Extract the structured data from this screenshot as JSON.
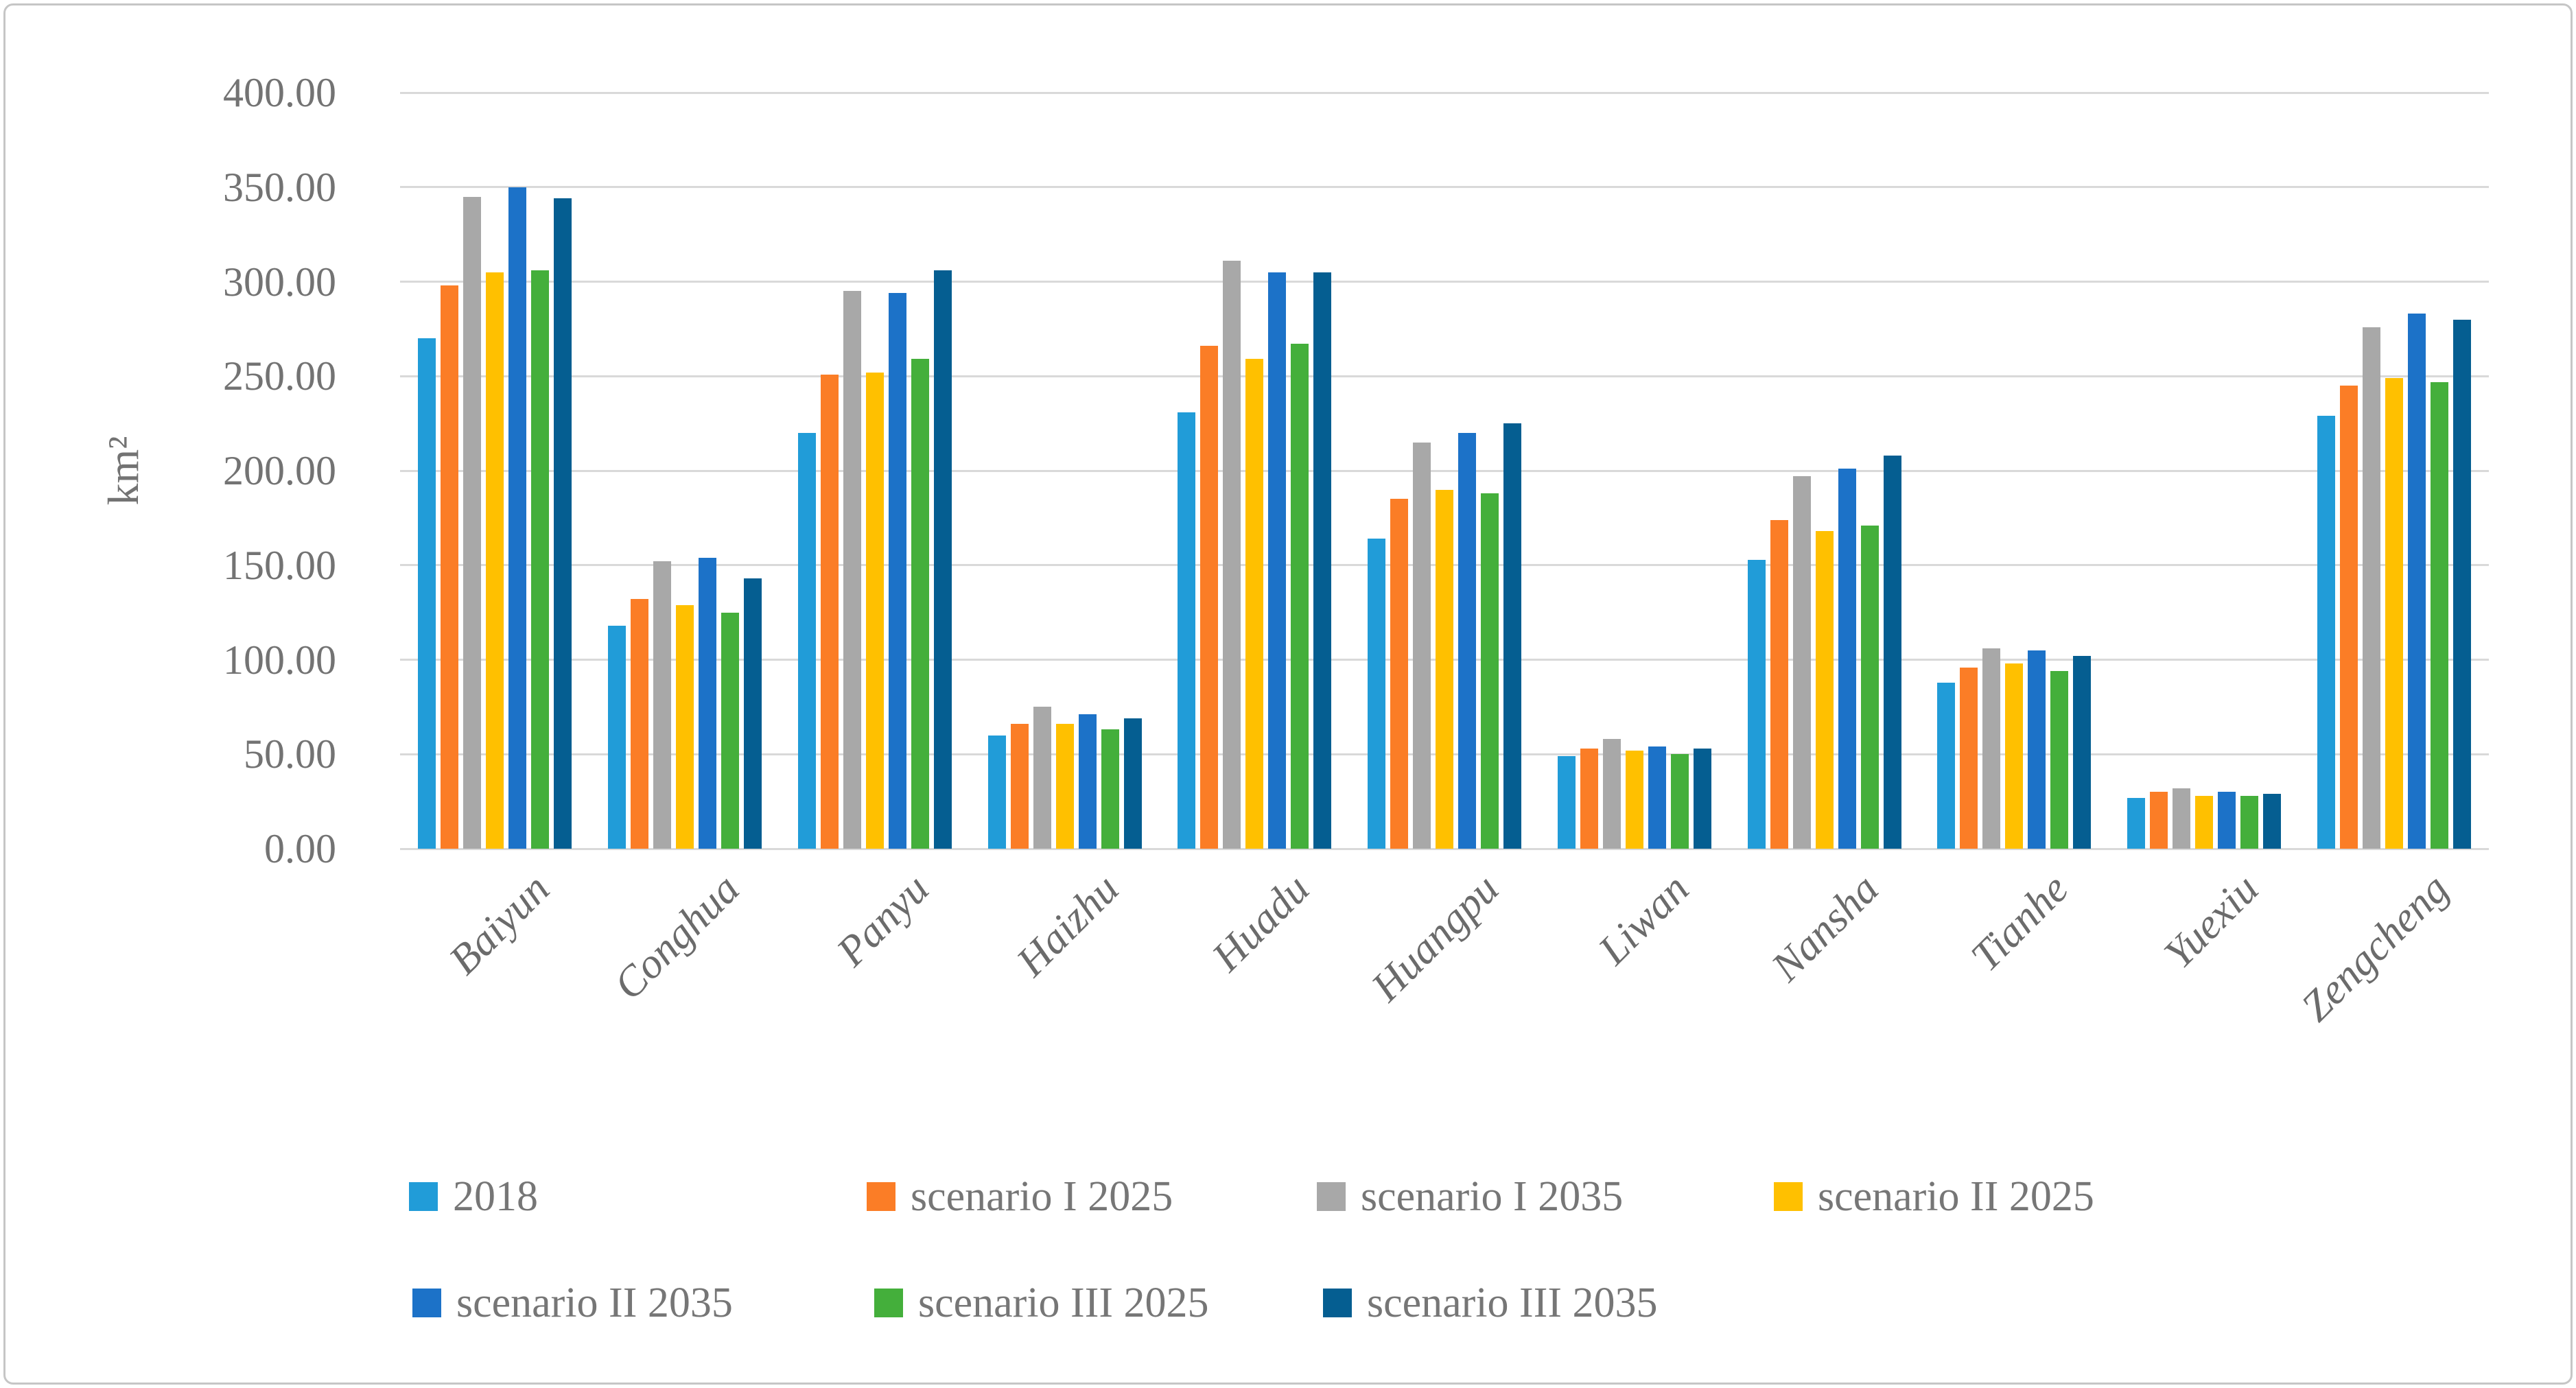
{
  "chart_data": {
    "type": "bar",
    "title": "",
    "ylabel": "km²",
    "xlabel": "",
    "ylim": [
      0,
      400
    ],
    "ytick_step": 50,
    "yticks": [
      "0.00",
      "50.00",
      "100.00",
      "150.00",
      "200.00",
      "250.00",
      "300.00",
      "350.00",
      "400.00"
    ],
    "grid": "horizontal",
    "categories": [
      "Baiyun",
      "Conghua",
      "Panyu",
      "Haizhu",
      "Huadu",
      "Huangpu",
      "Liwan",
      "Nansha",
      "Tianhe",
      "Yuexiu",
      "Zengcheng"
    ],
    "series": [
      {
        "name": "2018",
        "color": "#219cd8",
        "values": [
          270,
          118,
          220,
          60,
          231,
          164,
          49,
          153,
          88,
          27,
          229
        ]
      },
      {
        "name": "scenario I 2025",
        "color": "#fb7d26",
        "values": [
          298,
          132,
          251,
          66,
          266,
          185,
          53,
          174,
          96,
          30,
          245
        ]
      },
      {
        "name": "scenario I 2035",
        "color": "#a8a8a8",
        "values": [
          345,
          152,
          295,
          75,
          311,
          215,
          58,
          197,
          106,
          32,
          276
        ]
      },
      {
        "name": "scenario II 2025",
        "color": "#ffc000",
        "values": [
          305,
          129,
          252,
          66,
          259,
          190,
          52,
          168,
          98,
          28,
          249
        ]
      },
      {
        "name": "scenario II 2035",
        "color": "#1c72c8",
        "values": [
          350,
          154,
          294,
          71,
          305,
          220,
          54,
          201,
          105,
          30,
          283
        ]
      },
      {
        "name": "scenario III 2025",
        "color": "#44af3b",
        "values": [
          306,
          125,
          259,
          63,
          267,
          188,
          50,
          171,
          94,
          28,
          247
        ]
      },
      {
        "name": "scenario III 2035",
        "color": "#055e91",
        "values": [
          344,
          143,
          306,
          69,
          305,
          225,
          53,
          208,
          102,
          29,
          280
        ]
      }
    ],
    "legend": {
      "position": "bottom",
      "rows": [
        [
          0,
          1,
          2,
          3
        ],
        [
          4,
          5,
          6
        ]
      ]
    }
  },
  "colors": {
    "gridline": "#d9d9d9",
    "axis_text": "#737373",
    "category_text": "#6b6b6b",
    "legend_text": "#767676",
    "frame_border": "#c6c6c6"
  }
}
